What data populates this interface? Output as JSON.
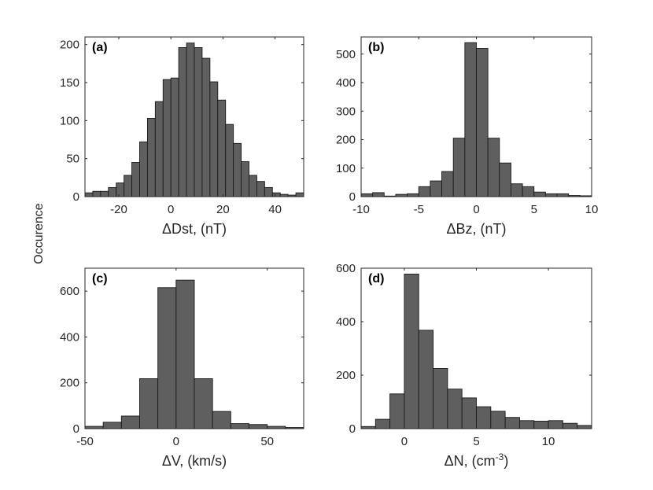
{
  "figure": {
    "ylabel": "Occurence"
  },
  "chart_data": [
    {
      "type": "bar",
      "panel_label": "(a)",
      "xlabel": "ΔDst, (nT)",
      "xlim": [
        -33,
        51
      ],
      "ylim": [
        0,
        210
      ],
      "xticks": [
        -20,
        0,
        20,
        40
      ],
      "yticks": [
        0,
        50,
        100,
        150,
        200
      ],
      "bin_width": 3,
      "bin_starts": [
        -33,
        -30,
        -27,
        -24,
        -21,
        -18,
        -15,
        -12,
        -9,
        -6,
        -3,
        0,
        3,
        6,
        9,
        12,
        15,
        18,
        21,
        24,
        27,
        30,
        33,
        36,
        39,
        42,
        45,
        48
      ],
      "values": [
        5,
        7,
        7,
        12,
        18,
        28,
        45,
        72,
        103,
        125,
        154,
        156,
        196,
        202,
        196,
        182,
        151,
        127,
        95,
        70,
        46,
        28,
        20,
        12,
        5,
        3,
        2,
        5
      ]
    },
    {
      "type": "bar",
      "panel_label": "(b)",
      "xlabel": "ΔBz, (nT)",
      "xlim": [
        -10,
        10
      ],
      "ylim": [
        0,
        560
      ],
      "xticks": [
        -10,
        -5,
        0,
        5,
        10
      ],
      "yticks": [
        0,
        100,
        200,
        300,
        400,
        500
      ],
      "bin_width": 1,
      "bin_starts": [
        -10,
        -9,
        -8,
        -7,
        -6,
        -5,
        -4,
        -3,
        -2,
        -1,
        0,
        1,
        2,
        3,
        4,
        5,
        6,
        7,
        8,
        9
      ],
      "values": [
        10,
        14,
        2,
        8,
        10,
        35,
        55,
        88,
        205,
        540,
        520,
        205,
        118,
        45,
        35,
        16,
        10,
        10,
        4,
        3
      ]
    },
    {
      "type": "bar",
      "panel_label": "(c)",
      "xlabel": "ΔV, (km/s)",
      "xlim": [
        -50,
        70
      ],
      "ylim": [
        0,
        700
      ],
      "xticks": [
        -50,
        0,
        50
      ],
      "yticks": [
        0,
        200,
        400,
        600
      ],
      "bin_width": 10,
      "bin_starts": [
        -50,
        -40,
        -30,
        -20,
        -10,
        0,
        10,
        20,
        30,
        40,
        50,
        60
      ],
      "values": [
        10,
        28,
        55,
        218,
        615,
        648,
        218,
        75,
        22,
        18,
        10,
        5
      ]
    },
    {
      "type": "bar",
      "panel_label": "(d)",
      "xlabel": "ΔN, (cm⁻³)",
      "xlabel_parts": {
        "base": "ΔN, (cm",
        "sup": "-3",
        "end": ")"
      },
      "xlim": [
        -3,
        13
      ],
      "ylim": [
        0,
        600
      ],
      "xticks": [
        0,
        5,
        10
      ],
      "yticks": [
        0,
        200,
        400,
        600
      ],
      "bin_width": 1,
      "bin_starts": [
        -3,
        -2,
        -1,
        0,
        1,
        2,
        3,
        4,
        5,
        6,
        7,
        8,
        9,
        10,
        11,
        12
      ],
      "values": [
        8,
        35,
        130,
        578,
        368,
        225,
        148,
        115,
        82,
        65,
        42,
        30,
        28,
        30,
        20,
        12
      ]
    }
  ]
}
